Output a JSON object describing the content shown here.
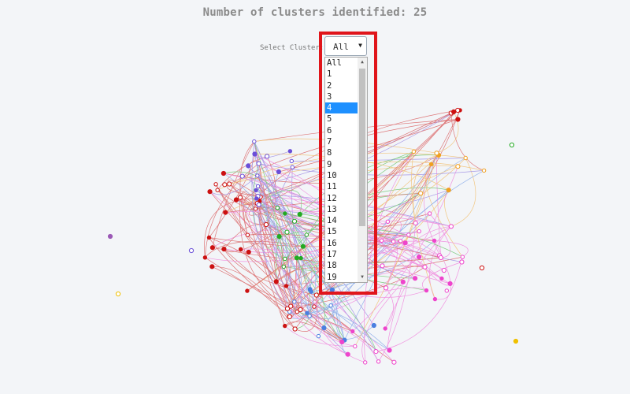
{
  "header": {
    "title": "Number of clusters identified: 25"
  },
  "cluster_selector": {
    "label": "Select Cluster:",
    "selected_value": "All",
    "highlighted_option": "4",
    "options": [
      "All",
      "1",
      "2",
      "3",
      "4",
      "5",
      "6",
      "7",
      "8",
      "9",
      "10",
      "11",
      "12",
      "13",
      "14",
      "15",
      "16",
      "17",
      "18",
      "19"
    ]
  },
  "colors": {
    "highlight_border": "#e0151b",
    "selected_option_bg": "#1e90ff",
    "cluster_palette": [
      "#cc1111",
      "#6a4fd8",
      "#ee44cc",
      "#22aa22",
      "#f0a020",
      "#4a7fe0",
      "#f0c000",
      "#9b59b6"
    ]
  }
}
